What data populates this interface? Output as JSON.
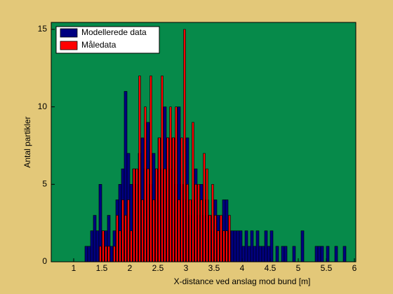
{
  "chart_data": {
    "type": "histogram",
    "xlabel": "X-distance ved anslag mod bund [m]",
    "ylabel": "Antal partikler",
    "bins": [
      1.2,
      1.25,
      1.3,
      1.35,
      1.4,
      1.45,
      1.5,
      1.55,
      1.6,
      1.65,
      1.7,
      1.75,
      1.8,
      1.85,
      1.9,
      1.95,
      2.0,
      2.05,
      2.1,
      2.15,
      2.2,
      2.25,
      2.3,
      2.35,
      2.4,
      2.45,
      2.5,
      2.55,
      2.6,
      2.65,
      2.7,
      2.75,
      2.8,
      2.85,
      2.9,
      2.95,
      3.0,
      3.05,
      3.1,
      3.15,
      3.2,
      3.25,
      3.3,
      3.35,
      3.4,
      3.45,
      3.5,
      3.55,
      3.6,
      3.65,
      3.7,
      3.75,
      3.8,
      3.85,
      3.9,
      3.95,
      4.0,
      4.05,
      4.1,
      4.15,
      4.2,
      4.25,
      4.3,
      4.35,
      4.4,
      4.45,
      4.5,
      4.55,
      4.6,
      4.65,
      4.7,
      4.75,
      4.8,
      4.85,
      4.9,
      4.95,
      5.0,
      5.05,
      5.1,
      5.15,
      5.2,
      5.25,
      5.3,
      5.35,
      5.4,
      5.45,
      5.5,
      5.55,
      5.6,
      5.65,
      5.7,
      5.75,
      5.8,
      5.85
    ],
    "series": [
      {
        "name": "Modellerede data",
        "color": "#000080",
        "values": [
          1,
          1,
          2,
          3,
          2,
          5,
          2,
          2,
          3,
          1,
          2,
          4,
          5,
          6,
          11,
          7,
          5,
          6,
          5,
          7,
          8,
          6,
          9,
          5,
          7,
          6,
          8,
          6,
          10,
          8,
          6,
          8,
          5,
          10,
          5,
          4,
          8,
          3,
          4,
          6,
          3,
          5,
          3,
          4,
          3,
          2,
          4,
          3,
          2,
          4,
          4,
          2,
          2,
          2,
          2,
          2,
          1,
          2,
          1,
          2,
          1,
          2,
          1,
          1,
          2,
          1,
          2,
          0,
          1,
          0,
          1,
          1,
          0,
          0,
          1,
          0,
          0,
          2,
          0,
          0,
          0,
          0,
          1,
          1,
          1,
          0,
          1,
          0,
          0,
          1,
          0,
          0,
          1
        ]
      },
      {
        "name": "Måledata",
        "color": "#ff0000",
        "values": [
          0,
          0,
          0,
          0,
          0,
          1,
          2,
          1,
          1,
          0,
          1,
          3,
          2,
          4,
          3,
          4,
          2,
          6,
          6,
          12,
          4,
          10,
          6,
          12,
          4,
          6,
          8,
          12,
          6,
          8,
          10,
          8,
          10,
          4,
          8,
          15,
          5,
          4,
          9,
          5,
          5,
          4,
          7,
          6,
          3,
          5,
          3,
          2,
          3,
          2,
          2,
          3,
          0,
          0,
          0,
          0,
          0,
          0,
          0,
          0,
          0,
          0,
          0,
          0,
          0,
          0,
          0,
          0,
          0,
          0,
          0,
          0,
          0,
          0,
          0,
          0,
          0,
          0,
          0,
          0,
          0,
          0,
          0,
          0,
          0,
          0,
          0,
          0,
          0,
          0,
          0,
          0,
          0
        ]
      }
    ],
    "xlim": [
      0.6,
      6.025
    ],
    "ylim": [
      0,
      15.45
    ],
    "xticks": [
      1,
      1.5,
      2,
      2.5,
      3,
      3.5,
      4,
      4.5,
      5,
      5.5,
      6
    ],
    "yticks": [
      0,
      5,
      10,
      15
    ],
    "legend": "upper left",
    "background": "#068a4a"
  }
}
